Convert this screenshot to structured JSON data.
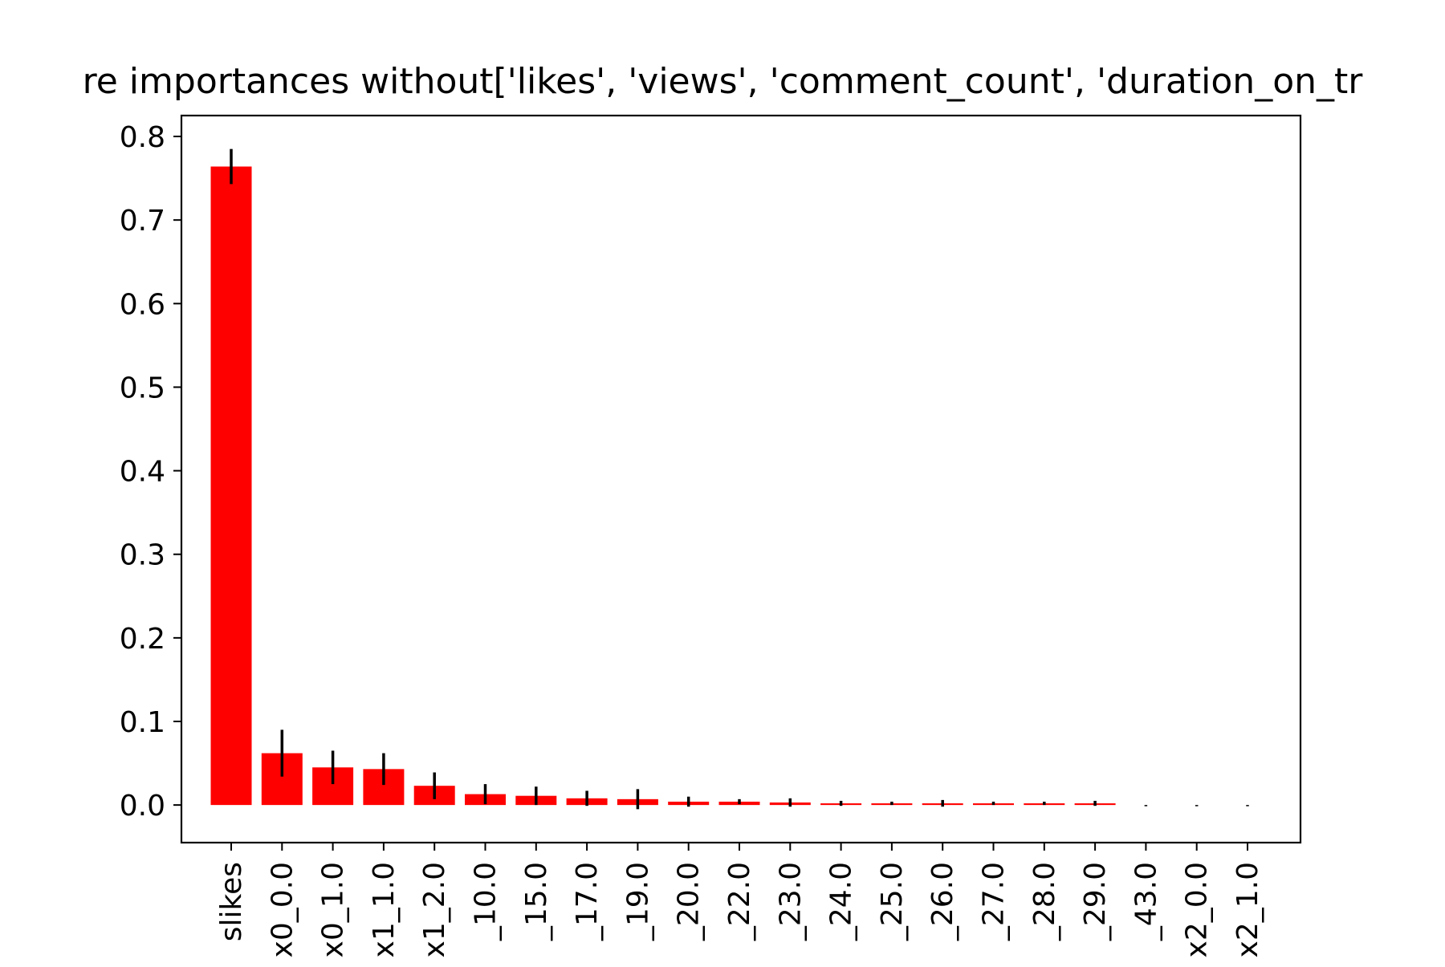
{
  "chart_data": {
    "type": "bar",
    "title": "re importances without['likes', 'views', 'comment_count', 'duration_on_tr",
    "xlabel": "",
    "ylabel": "",
    "ylim": [
      -0.045,
      0.825
    ],
    "yticks": [
      "0.0",
      "0.1",
      "0.2",
      "0.3",
      "0.4",
      "0.5",
      "0.6",
      "0.7",
      "0.8"
    ],
    "ytick_values": [
      0.0,
      0.1,
      0.2,
      0.3,
      0.4,
      0.5,
      0.6,
      0.7,
      0.8
    ],
    "categories": [
      "slikes",
      "x0_0.0",
      "x0_1.0",
      "x1_1.0",
      "x1_2.0",
      "_10.0",
      "_15.0",
      "_17.0",
      "_19.0",
      "_20.0",
      "_22.0",
      "_23.0",
      "_24.0",
      "_25.0",
      "_26.0",
      "_27.0",
      "_28.0",
      "_29.0",
      "_43.0",
      "x2_0.0",
      "x2_1.0"
    ],
    "values": [
      0.764,
      0.062,
      0.045,
      0.043,
      0.023,
      0.013,
      0.011,
      0.008,
      0.007,
      0.004,
      0.004,
      0.003,
      0.002,
      0.002,
      0.002,
      0.002,
      0.002,
      0.002,
      0.0,
      0.0,
      0.0
    ],
    "errors": [
      0.021,
      0.028,
      0.02,
      0.019,
      0.016,
      0.012,
      0.011,
      0.009,
      0.012,
      0.006,
      0.003,
      0.005,
      0.003,
      0.002,
      0.004,
      0.002,
      0.002,
      0.003,
      0.0,
      0.0,
      0.0
    ],
    "bar_color": "#ff0000",
    "error_color": "#000000",
    "grid": false
  }
}
